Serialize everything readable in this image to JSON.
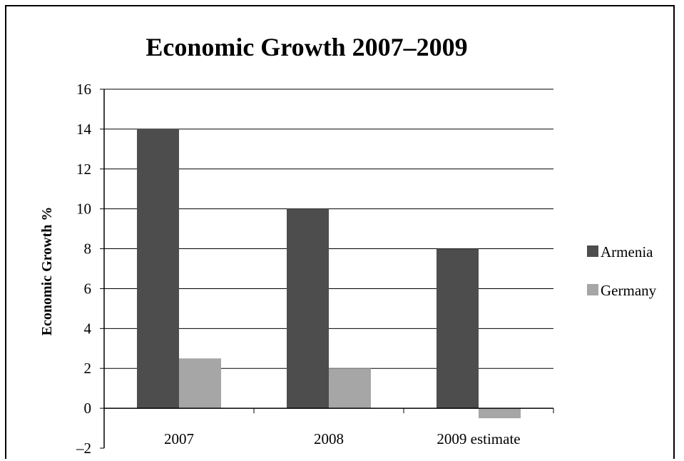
{
  "chart_data": {
    "type": "bar",
    "title": "Economic Growth 2007–2009",
    "xlabel": "",
    "ylabel": "Economic Growth %",
    "categories": [
      "2007",
      "2008",
      "2009 estimate"
    ],
    "series": [
      {
        "name": "Armenia",
        "values": [
          14,
          10,
          8
        ],
        "color": "#4d4d4d"
      },
      {
        "name": "Germany",
        "values": [
          2.5,
          2,
          -0.5
        ],
        "color": "#a6a6a6"
      }
    ],
    "ylim": [
      -2,
      16
    ],
    "yticks": [
      "16",
      "14",
      "12",
      "10",
      "8",
      "6",
      "4",
      "2",
      "0",
      "–2"
    ],
    "grid": true,
    "legend": "right"
  }
}
